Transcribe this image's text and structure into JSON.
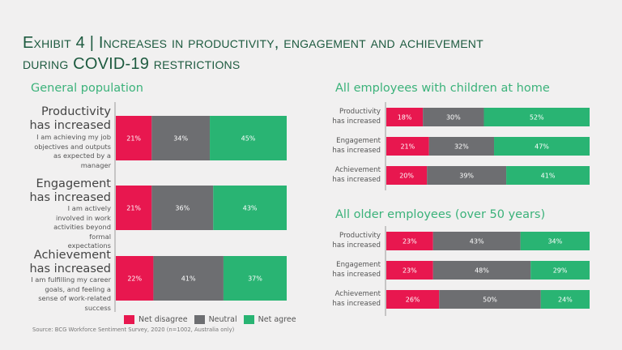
{
  "title": {
    "line1": "Exhibit 4 | Increases in productivity, engagement and achievement",
    "line2": "during COVID-19 restrictions"
  },
  "colors": {
    "net_disagree": "#e8174f",
    "neutral": "#6d6e71",
    "net_agree": "#29b473",
    "title": "#1d5a3f",
    "panel_title": "#3bb27a"
  },
  "legend": {
    "net_disagree": "Net disagree",
    "neutral": "Neutral",
    "net_agree": "Net agree"
  },
  "source": "Source: BCG Workforce Sentiment Survey, 2020 (n=1002, Australia only)",
  "chart_data": [
    {
      "type": "bar",
      "orientation": "horizontal-stacked-100",
      "title": "General population",
      "categories": [
        "Productivity has increased",
        "Engagement has increased",
        "Achievement has increased"
      ],
      "category_descriptions": [
        "I am achieving my job objectives and outputs as expected by a manager",
        "I am actively involved in work activities beyond formal expectations",
        "I am fulfilling my career goals, and feeling a sense of work-related success"
      ],
      "series": [
        {
          "name": "Net disagree",
          "values": [
            21,
            21,
            22
          ]
        },
        {
          "name": "Neutral",
          "values": [
            34,
            36,
            41
          ]
        },
        {
          "name": "Net agree",
          "values": [
            45,
            43,
            37
          ]
        }
      ],
      "value_suffix": "%",
      "xlim": [
        0,
        100
      ],
      "legend_position": "bottom"
    },
    {
      "type": "bar",
      "orientation": "horizontal-stacked-100",
      "title": "All employees with children at home",
      "categories": [
        "Productivity has increased",
        "Engagement has increased",
        "Achievement has increased"
      ],
      "series": [
        {
          "name": "Net disagree",
          "values": [
            18,
            21,
            20
          ]
        },
        {
          "name": "Neutral",
          "values": [
            30,
            32,
            39
          ]
        },
        {
          "name": "Net agree",
          "values": [
            52,
            47,
            41
          ]
        }
      ],
      "value_suffix": "%",
      "xlim": [
        0,
        100
      ]
    },
    {
      "type": "bar",
      "orientation": "horizontal-stacked-100",
      "title": "All older employees (over 50 years)",
      "categories": [
        "Productivity has increased",
        "Engagement has increased",
        "Achievement has increased"
      ],
      "series": [
        {
          "name": "Net disagree",
          "values": [
            23,
            23,
            26
          ]
        },
        {
          "name": "Neutral",
          "values": [
            43,
            48,
            50
          ]
        },
        {
          "name": "Net agree",
          "values": [
            34,
            29,
            24
          ]
        }
      ],
      "value_suffix": "%",
      "xlim": [
        0,
        100
      ]
    }
  ]
}
